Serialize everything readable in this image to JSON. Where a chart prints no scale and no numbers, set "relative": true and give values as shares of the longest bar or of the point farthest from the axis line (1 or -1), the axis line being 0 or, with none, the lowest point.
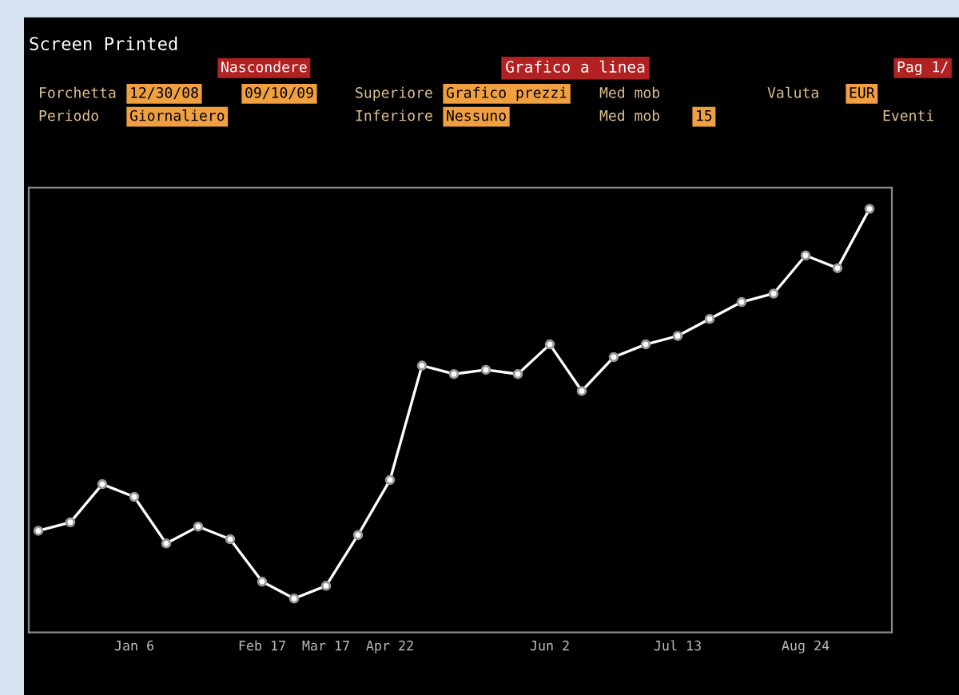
{
  "chart_data": {
    "type": "line",
    "title": "Grafico a linea",
    "relative": true,
    "marker": "circle",
    "line_style": "solid",
    "categories": [
      null,
      null,
      null,
      "Jan 6",
      null,
      null,
      null,
      "Feb 17",
      null,
      "Mar 17",
      null,
      "Apr 22",
      null,
      null,
      null,
      null,
      "Jun 2",
      null,
      null,
      null,
      "Jul 13",
      null,
      null,
      null,
      "Aug 24",
      null,
      null
    ],
    "series": [
      {
        "color": "#ffffff",
        "values": [
          0.24,
          0.26,
          0.35,
          0.32,
          0.21,
          0.25,
          0.22,
          0.12,
          0.08,
          0.11,
          0.23,
          0.36,
          0.63,
          0.61,
          0.62,
          0.61,
          0.68,
          0.57,
          0.65,
          0.68,
          0.7,
          0.74,
          0.78,
          0.8,
          0.89,
          0.86,
          1.0
        ]
      }
    ],
    "annotations": [
      "Screen Printed",
      "Nascondere",
      "Pag 1/",
      "Forchetta",
      "12/30/08",
      "09/10/09",
      "Superiore",
      "Grafico prezzi",
      "Med mob",
      "Valuta",
      "EUR",
      "Periodo",
      "Giornaliero",
      "Inferiore",
      "Nessuno",
      "Med mob",
      "15",
      "Eventi"
    ]
  }
}
